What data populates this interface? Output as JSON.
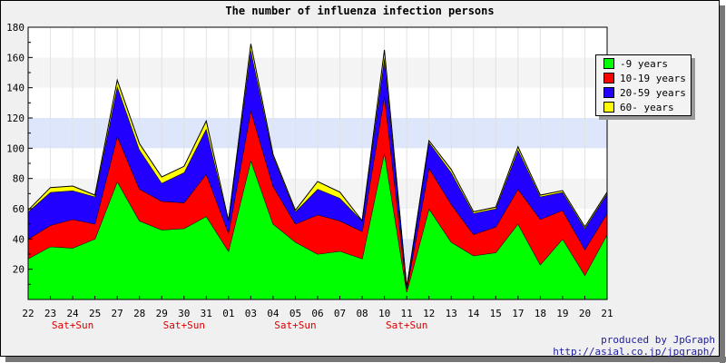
{
  "chart_data": {
    "type": "area",
    "stacked": true,
    "title": "The number of influenza infection persons",
    "xlabel": "",
    "ylabel": "",
    "ylim": [
      0,
      180
    ],
    "yticks": [
      20,
      40,
      60,
      80,
      100,
      120,
      140,
      160,
      180
    ],
    "grid": "horizontal bands",
    "legend_position": "right",
    "categories": [
      "22",
      "23",
      "24",
      "25",
      "27",
      "28",
      "29",
      "30",
      "31",
      "01",
      "03",
      "04",
      "05",
      "06",
      "07",
      "08",
      "10",
      "11",
      "12",
      "13",
      "14",
      "15",
      "17",
      "18",
      "19",
      "20",
      "21"
    ],
    "annotations": [
      {
        "category": "24",
        "text": "Sat+Sun"
      },
      {
        "category": "30",
        "text": "Sat+Sun"
      },
      {
        "category": "05",
        "text": "Sat+Sun"
      },
      {
        "category": "11",
        "text": "Sat+Sun"
      }
    ],
    "series": [
      {
        "name": "-9 years",
        "color": "#00ff00",
        "values": [
          27,
          35,
          34,
          40,
          78,
          52,
          46,
          47,
          55,
          32,
          92,
          50,
          38,
          30,
          32,
          27,
          97,
          5,
          60,
          38,
          29,
          31,
          50,
          23,
          40,
          16,
          43
        ]
      },
      {
        "name": "10-19 years",
        "color": "#ff0000",
        "values": [
          13,
          14,
          19,
          10,
          30,
          21,
          19,
          17,
          28,
          12,
          33,
          25,
          12,
          26,
          20,
          18,
          38,
          2,
          27,
          25,
          14,
          17,
          23,
          30,
          19,
          17,
          14
        ]
      },
      {
        "name": "20-59 years",
        "color": "#2200ff",
        "values": [
          18,
          22,
          19,
          18,
          33,
          26,
          12,
          20,
          30,
          8,
          40,
          20,
          8,
          17,
          15,
          7,
          25,
          1,
          17,
          21,
          14,
          12,
          26,
          15,
          12,
          14,
          13
        ]
      },
      {
        "name": "60- years",
        "color": "#ffff00",
        "values": [
          1,
          3,
          3,
          1,
          4,
          4,
          4,
          4,
          5,
          0,
          4,
          1,
          1,
          5,
          4,
          0,
          5,
          0,
          1,
          2,
          1,
          1,
          2,
          1,
          1,
          1,
          1
        ]
      }
    ]
  },
  "credit": {
    "line1": "produced by JpGraph",
    "line2": "http://asial.co.jp/jpgraph/"
  }
}
